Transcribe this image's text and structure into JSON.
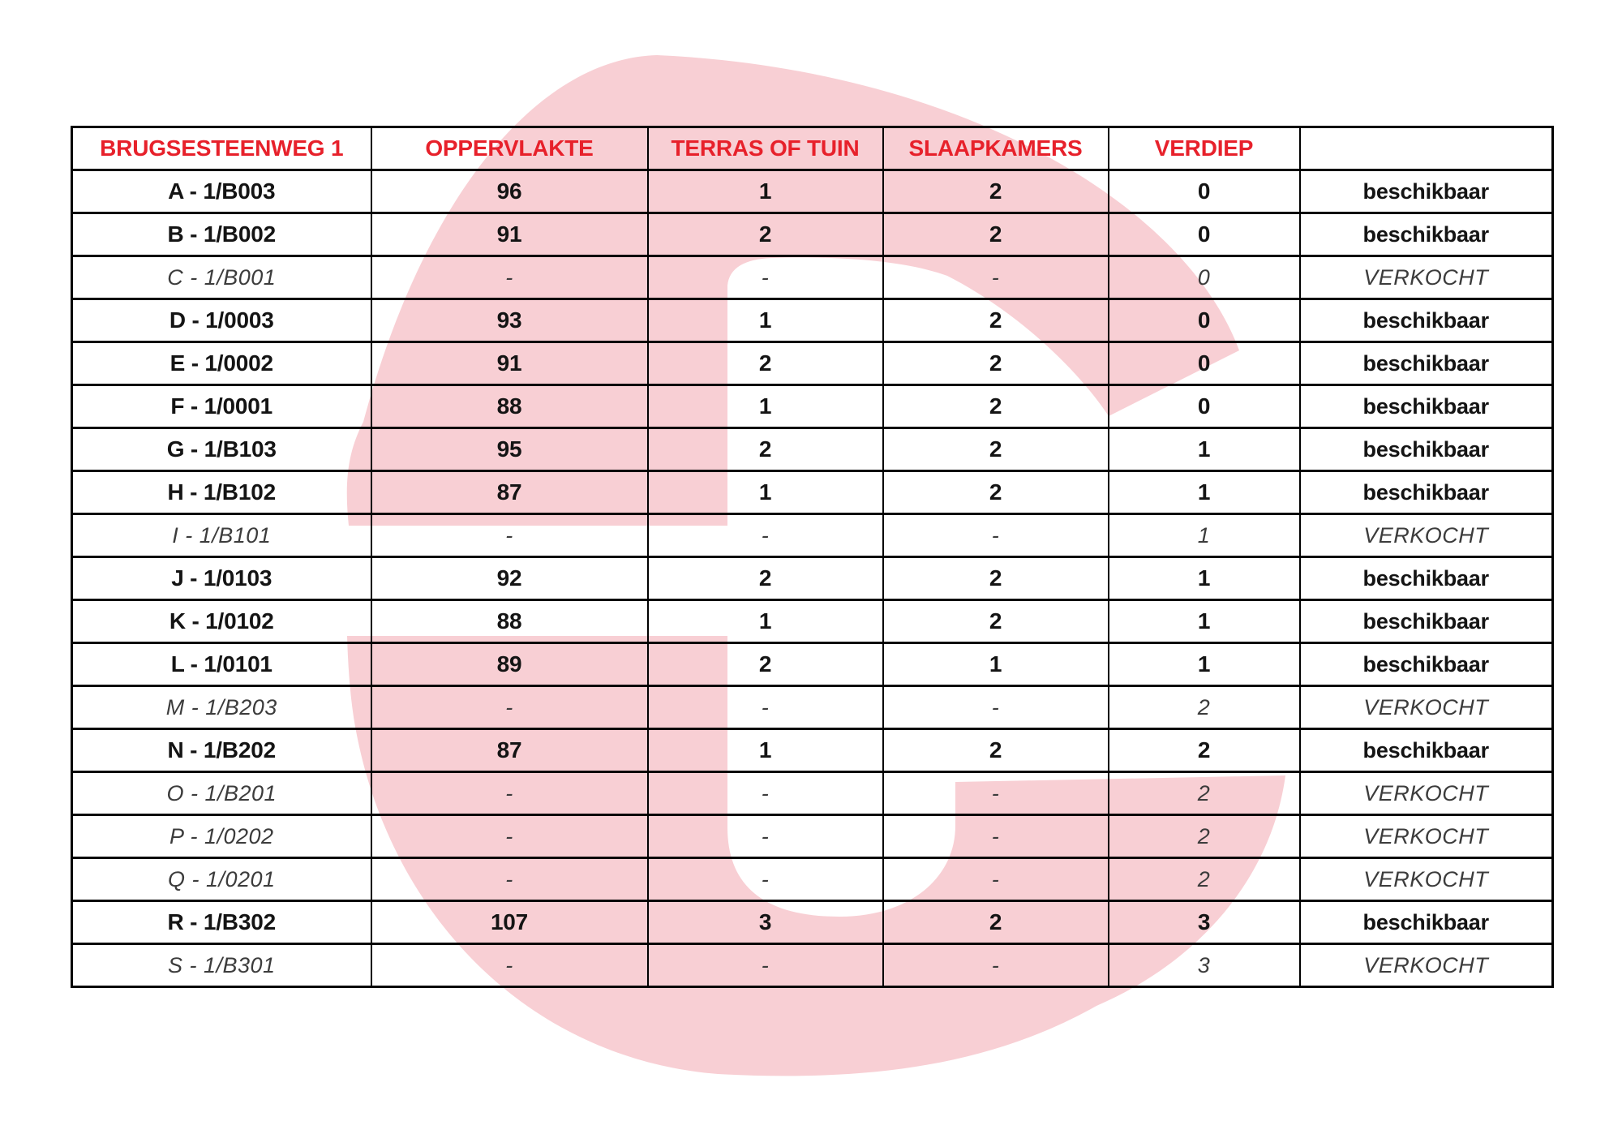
{
  "colors": {
    "watermark_pink": "#f8cfd4",
    "header_red": "#e7212b",
    "text_black": "#141414",
    "sold_gray": "#3c3c3c",
    "border_black": "#000000"
  },
  "table": {
    "columns": [
      "BRUGSESTEENWEG 1",
      "OPPERVLAKTE",
      "TERRAS OF TUIN",
      "SLAAPKAMERS",
      "VERDIEP",
      ""
    ],
    "rows": [
      {
        "unit": "A - 1/B003",
        "oppervlakte": "96",
        "terras_of_tuin": "1",
        "slaapkamers": "2",
        "verdiep": "0",
        "status": "beschikbaar",
        "sold": false
      },
      {
        "unit": "B - 1/B002",
        "oppervlakte": "91",
        "terras_of_tuin": "2",
        "slaapkamers": "2",
        "verdiep": "0",
        "status": "beschikbaar",
        "sold": false
      },
      {
        "unit": "C - 1/B001",
        "oppervlakte": "-",
        "terras_of_tuin": "-",
        "slaapkamers": "-",
        "verdiep": "0",
        "status": "VERKOCHT",
        "sold": true
      },
      {
        "unit": "D - 1/0003",
        "oppervlakte": "93",
        "terras_of_tuin": "1",
        "slaapkamers": "2",
        "verdiep": "0",
        "status": "beschikbaar",
        "sold": false
      },
      {
        "unit": "E - 1/0002",
        "oppervlakte": "91",
        "terras_of_tuin": "2",
        "slaapkamers": "2",
        "verdiep": "0",
        "status": "beschikbaar",
        "sold": false
      },
      {
        "unit": "F - 1/0001",
        "oppervlakte": "88",
        "terras_of_tuin": "1",
        "slaapkamers": "2",
        "verdiep": "0",
        "status": "beschikbaar",
        "sold": false
      },
      {
        "unit": "G - 1/B103",
        "oppervlakte": "95",
        "terras_of_tuin": "2",
        "slaapkamers": "2",
        "verdiep": "1",
        "status": "beschikbaar",
        "sold": false
      },
      {
        "unit": "H - 1/B102",
        "oppervlakte": "87",
        "terras_of_tuin": "1",
        "slaapkamers": "2",
        "verdiep": "1",
        "status": "beschikbaar",
        "sold": false
      },
      {
        "unit": "I - 1/B101",
        "oppervlakte": "-",
        "terras_of_tuin": "-",
        "slaapkamers": "-",
        "verdiep": "1",
        "status": "VERKOCHT",
        "sold": true
      },
      {
        "unit": "J - 1/0103",
        "oppervlakte": "92",
        "terras_of_tuin": "2",
        "slaapkamers": "2",
        "verdiep": "1",
        "status": "beschikbaar",
        "sold": false
      },
      {
        "unit": "K - 1/0102",
        "oppervlakte": "88",
        "terras_of_tuin": "1",
        "slaapkamers": "2",
        "verdiep": "1",
        "status": "beschikbaar",
        "sold": false
      },
      {
        "unit": "L - 1/0101",
        "oppervlakte": "89",
        "terras_of_tuin": "2",
        "slaapkamers": "1",
        "verdiep": "1",
        "status": "beschikbaar",
        "sold": false
      },
      {
        "unit": "M - 1/B203",
        "oppervlakte": "-",
        "terras_of_tuin": "-",
        "slaapkamers": "-",
        "verdiep": "2",
        "status": "VERKOCHT",
        "sold": true
      },
      {
        "unit": "N - 1/B202",
        "oppervlakte": "87",
        "terras_of_tuin": "1",
        "slaapkamers": "2",
        "verdiep": "2",
        "status": "beschikbaar",
        "sold": false
      },
      {
        "unit": "O - 1/B201",
        "oppervlakte": "-",
        "terras_of_tuin": "-",
        "slaapkamers": "-",
        "verdiep": "2",
        "status": "VERKOCHT",
        "sold": true
      },
      {
        "unit": "P - 1/0202",
        "oppervlakte": "-",
        "terras_of_tuin": "-",
        "slaapkamers": "-",
        "verdiep": "2",
        "status": "VERKOCHT",
        "sold": true
      },
      {
        "unit": "Q - 1/0201",
        "oppervlakte": "-",
        "terras_of_tuin": "-",
        "slaapkamers": "-",
        "verdiep": "2",
        "status": "VERKOCHT",
        "sold": true
      },
      {
        "unit": "R - 1/B302",
        "oppervlakte": "107",
        "terras_of_tuin": "3",
        "slaapkamers": "2",
        "verdiep": "3",
        "status": "beschikbaar",
        "sold": false
      },
      {
        "unit": "S - 1/B301",
        "oppervlakte": "-",
        "terras_of_tuin": "-",
        "slaapkamers": "-",
        "verdiep": "3",
        "status": "VERKOCHT",
        "sold": true
      }
    ]
  }
}
